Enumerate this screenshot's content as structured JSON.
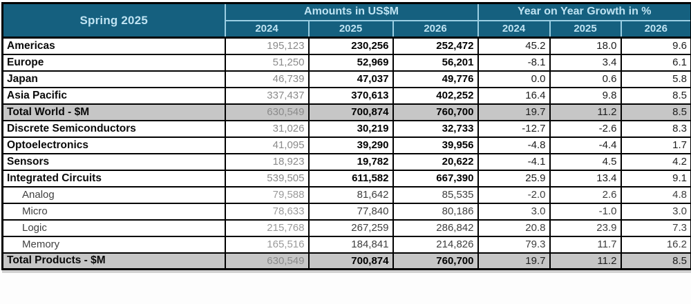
{
  "colors": {
    "header_bg": "#15607F",
    "header_text": "#BFE3F2",
    "header_divider": "#9CCFE3",
    "total_row_bg": "#C6C6C6",
    "muted_value_text": "#8A8A8A",
    "grid_border": "#000000"
  },
  "chart_data": {
    "type": "table",
    "title": "Spring 2025",
    "column_groups": [
      "Amounts in US$M",
      "Year on Year Growth in %"
    ],
    "years": [
      "2024",
      "2025",
      "2026"
    ],
    "rows": [
      {
        "label": "Americas",
        "style": "main",
        "amounts": [
          "195,123",
          "230,256",
          "252,472"
        ],
        "growth": [
          "45.2",
          "18.0",
          "9.6"
        ]
      },
      {
        "label": "Europe",
        "style": "main",
        "amounts": [
          "51,250",
          "52,969",
          "56,201"
        ],
        "growth": [
          "-8.1",
          "3.4",
          "6.1"
        ]
      },
      {
        "label": "Japan",
        "style": "main",
        "amounts": [
          "46,739",
          "47,037",
          "49,776"
        ],
        "growth": [
          "0.0",
          "0.6",
          "5.8"
        ]
      },
      {
        "label": "Asia Pacific",
        "style": "main",
        "amounts": [
          "337,437",
          "370,613",
          "402,252"
        ],
        "growth": [
          "16.4",
          "9.8",
          "8.5"
        ]
      },
      {
        "label": "Total World - $M",
        "style": "total",
        "amounts": [
          "630,549",
          "700,874",
          "760,700"
        ],
        "growth": [
          "19.7",
          "11.2",
          "8.5"
        ]
      },
      {
        "label": "Discrete Semiconductors",
        "style": "main",
        "amounts": [
          "31,026",
          "30,219",
          "32,733"
        ],
        "growth": [
          "-12.7",
          "-2.6",
          "8.3"
        ]
      },
      {
        "label": "Optoelectronics",
        "style": "main",
        "amounts": [
          "41,095",
          "39,290",
          "39,956"
        ],
        "growth": [
          "-4.8",
          "-4.4",
          "1.7"
        ]
      },
      {
        "label": "Sensors",
        "style": "main",
        "amounts": [
          "18,923",
          "19,782",
          "20,622"
        ],
        "growth": [
          "-4.1",
          "4.5",
          "4.2"
        ]
      },
      {
        "label": "Integrated Circuits",
        "style": "main",
        "amounts": [
          "539,505",
          "611,582",
          "667,390"
        ],
        "growth": [
          "25.9",
          "13.4",
          "9.1"
        ]
      },
      {
        "label": "Analog",
        "style": "sub",
        "amounts": [
          "79,588",
          "81,642",
          "85,535"
        ],
        "growth": [
          "-2.0",
          "2.6",
          "4.8"
        ]
      },
      {
        "label": "Micro",
        "style": "sub",
        "amounts": [
          "78,633",
          "77,840",
          "80,186"
        ],
        "growth": [
          "3.0",
          "-1.0",
          "3.0"
        ]
      },
      {
        "label": "Logic",
        "style": "sub",
        "amounts": [
          "215,768",
          "267,259",
          "286,842"
        ],
        "growth": [
          "20.8",
          "23.9",
          "7.3"
        ]
      },
      {
        "label": "Memory",
        "style": "sub",
        "amounts": [
          "165,516",
          "184,841",
          "214,826"
        ],
        "growth": [
          "79.3",
          "11.7",
          "16.2"
        ]
      },
      {
        "label": "Total Products - $M",
        "style": "total",
        "amounts": [
          "630,549",
          "700,874",
          "760,700"
        ],
        "growth": [
          "19.7",
          "11.2",
          "8.5"
        ]
      }
    ]
  }
}
